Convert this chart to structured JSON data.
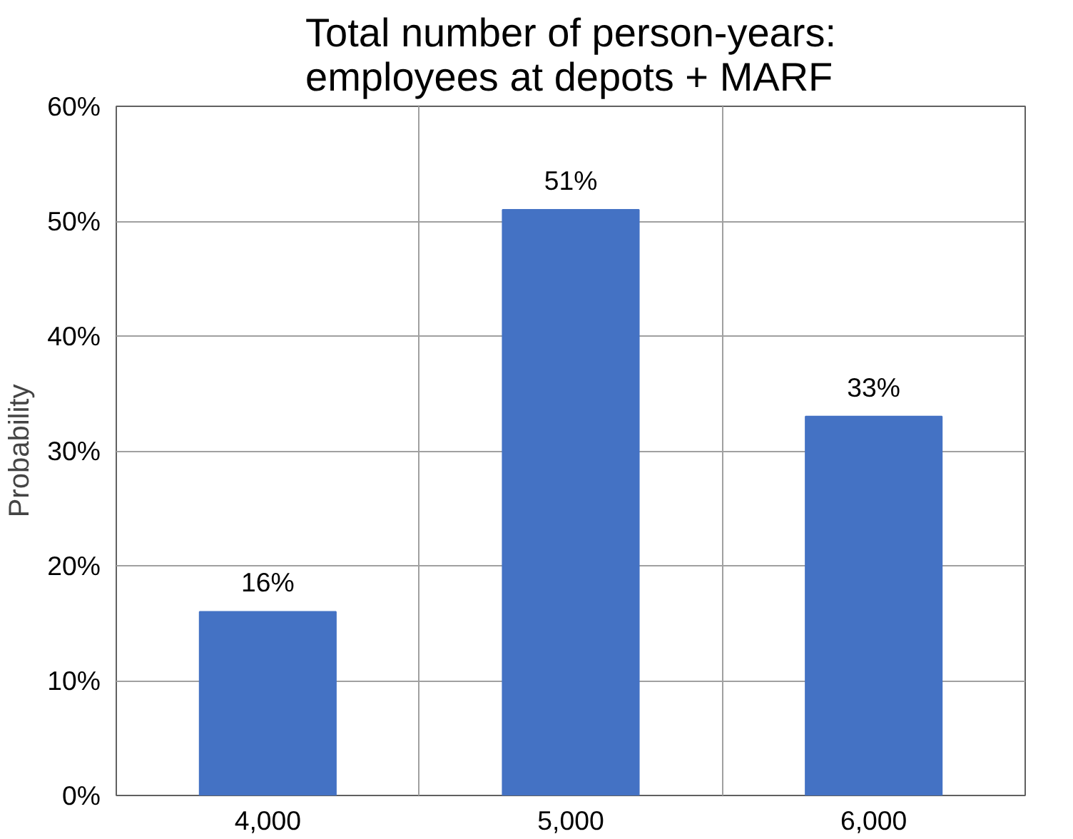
{
  "chart_data": {
    "type": "bar",
    "title": "Total number of person-years:\nemployees at depots + MARF",
    "ylabel": "Probability",
    "categories": [
      "4,000",
      "5,000",
      "6,000"
    ],
    "values": [
      16,
      51,
      33
    ],
    "color": "#4472c4",
    "value_labels": [
      "16%",
      "51%",
      "33%"
    ],
    "ylim": [
      0,
      60
    ],
    "yticks": [
      {
        "value": 0,
        "label": "0%"
      },
      {
        "value": 10,
        "label": "10%"
      },
      {
        "value": 20,
        "label": "20%"
      },
      {
        "value": 30,
        "label": "30%"
      },
      {
        "value": 40,
        "label": "40%"
      },
      {
        "value": 50,
        "label": "50%"
      },
      {
        "value": 60,
        "label": "60%"
      }
    ],
    "grid": true
  }
}
